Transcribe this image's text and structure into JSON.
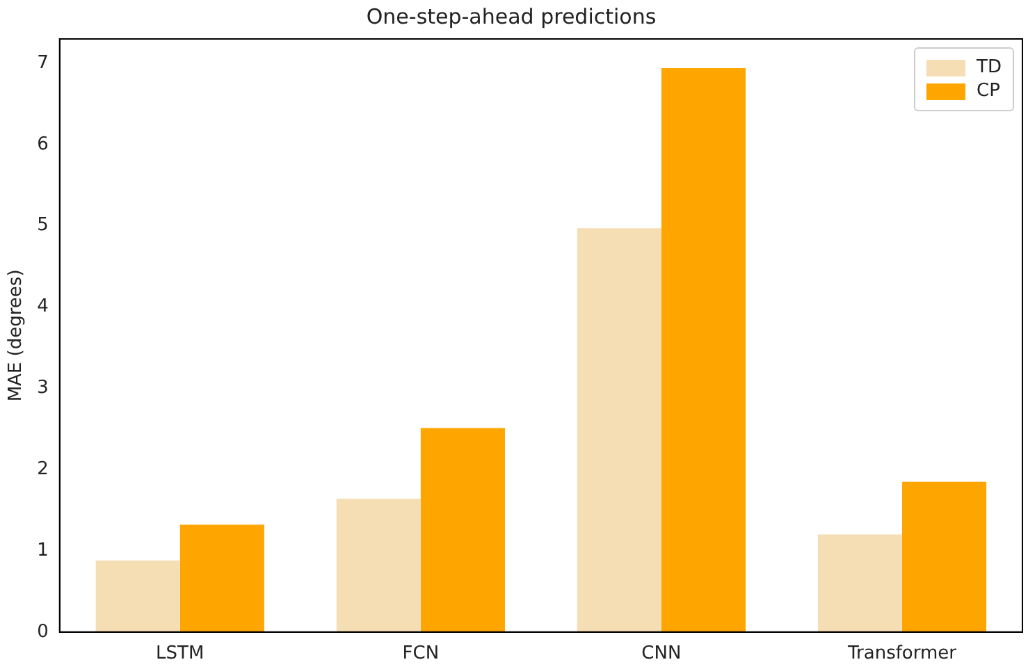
{
  "chart_data": {
    "type": "bar",
    "title": "One-step-ahead predictions",
    "ylabel": "MAE (degrees)",
    "categories": [
      "LSTM",
      "FCN",
      "CNN",
      "Transformer"
    ],
    "series": [
      {
        "name": "TD",
        "color": "#f5deb3",
        "values": [
          0.88,
          1.64,
          4.97,
          1.2
        ]
      },
      {
        "name": "CP",
        "color": "#ffa500",
        "values": [
          1.32,
          2.51,
          6.94,
          1.85
        ]
      }
    ],
    "ylim": [
      0,
      7.3
    ],
    "yticks": [
      0,
      1,
      2,
      3,
      4,
      5,
      6,
      7
    ],
    "grid": false,
    "legend": "top right"
  }
}
